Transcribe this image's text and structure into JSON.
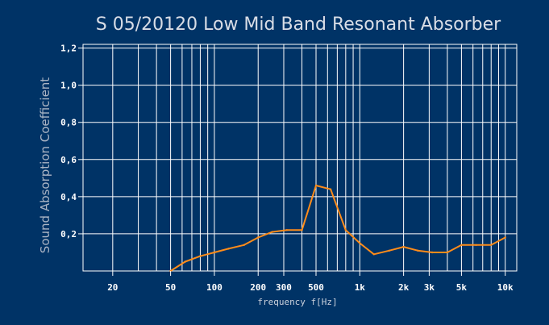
{
  "chart_data": {
    "type": "line",
    "title": "S 05/20120 Low Mid Band Resonant Absorber",
    "xlabel": "frequency f[Hz]",
    "ylabel": "Sound Absorption Coefficient",
    "x_scale": "log",
    "xlim": [
      12.5,
      12000
    ],
    "ylim": [
      0,
      1.22
    ],
    "grid": true,
    "yticks": [
      {
        "value": 0.2,
        "label": "0,2"
      },
      {
        "value": 0.4,
        "label": "0,4"
      },
      {
        "value": 0.6,
        "label": "0,6"
      },
      {
        "value": 0.8,
        "label": "0,8"
      },
      {
        "value": 1.0,
        "label": "1,0"
      },
      {
        "value": 1.2,
        "label": "1,2"
      }
    ],
    "xticks": [
      {
        "value": 20,
        "label": "20"
      },
      {
        "value": 50,
        "label": "50"
      },
      {
        "value": 100,
        "label": "100"
      },
      {
        "value": 200,
        "label": "200"
      },
      {
        "value": 300,
        "label": "300"
      },
      {
        "value": 500,
        "label": "500"
      },
      {
        "value": 1000,
        "label": "1k"
      },
      {
        "value": 2000,
        "label": "2k"
      },
      {
        "value": 3000,
        "label": "3k"
      },
      {
        "value": 5000,
        "label": "5k"
      },
      {
        "value": 10000,
        "label": "10k"
      }
    ],
    "x_gridlines": [
      20,
      30,
      40,
      50,
      60,
      70,
      80,
      90,
      100,
      200,
      300,
      400,
      500,
      600,
      700,
      800,
      900,
      1000,
      2000,
      3000,
      4000,
      5000,
      6000,
      7000,
      8000,
      9000,
      10000
    ],
    "series": [
      {
        "color": "#ff8c1a",
        "x": [
          50,
          63,
          80,
          100,
          125,
          160,
          200,
          250,
          315,
          400,
          500,
          630,
          800,
          1000,
          1250,
          1600,
          2000,
          2500,
          3150,
          4000,
          5000,
          6300,
          8000,
          10000
        ],
        "y": [
          0.0,
          0.05,
          0.08,
          0.1,
          0.12,
          0.14,
          0.18,
          0.21,
          0.22,
          0.22,
          0.46,
          0.44,
          0.22,
          0.15,
          0.09,
          0.11,
          0.13,
          0.11,
          0.1,
          0.1,
          0.14,
          0.14,
          0.14,
          0.18
        ]
      }
    ]
  }
}
